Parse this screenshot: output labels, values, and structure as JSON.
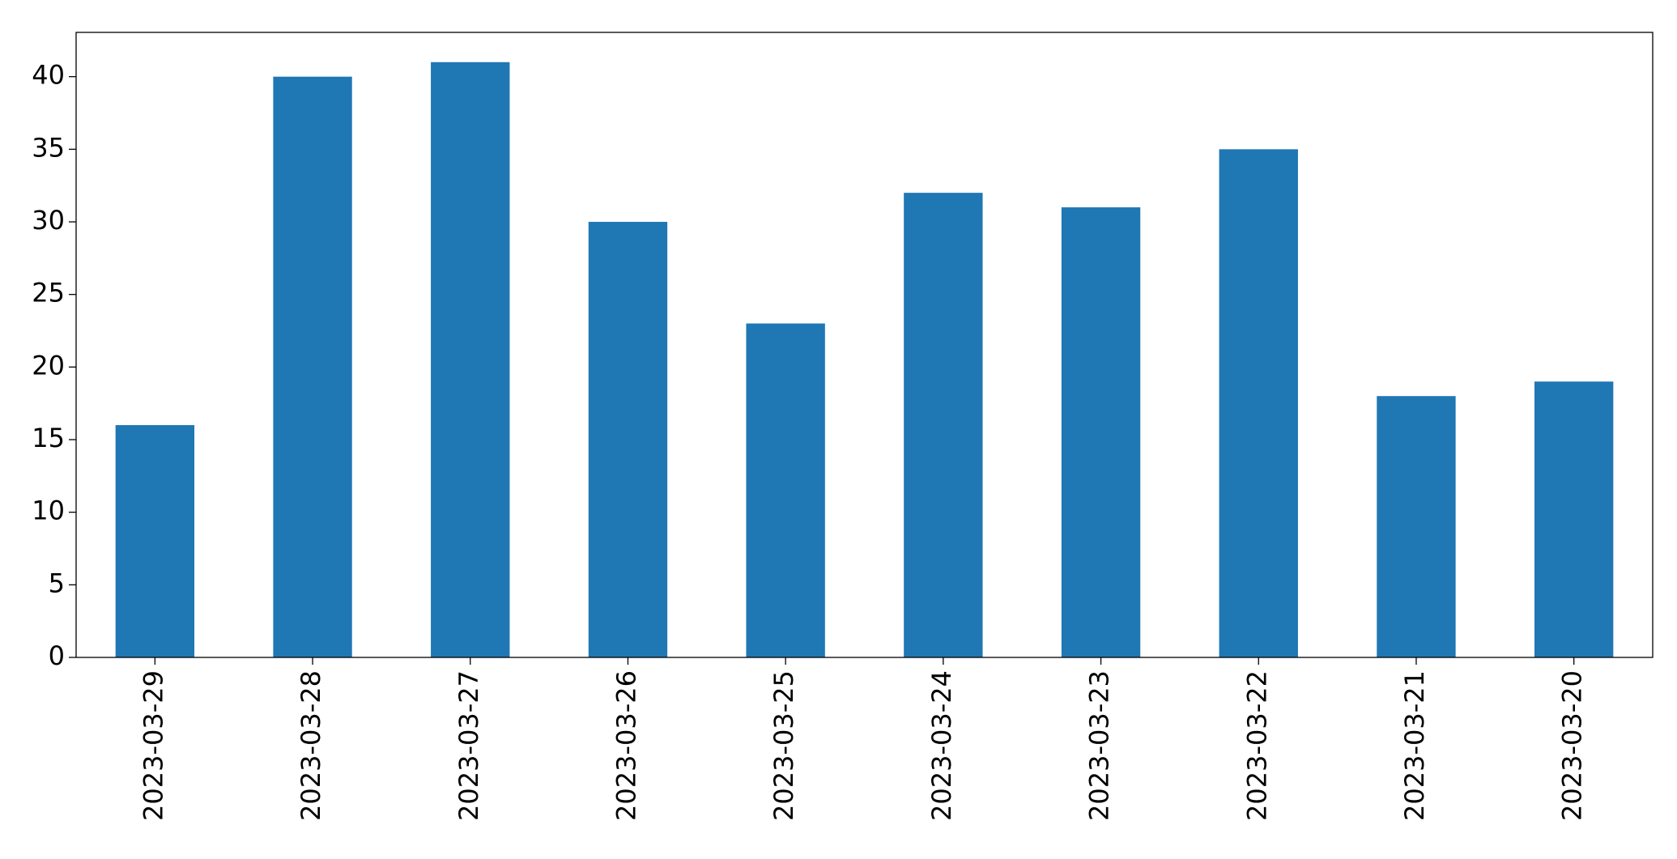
{
  "chart_data": {
    "type": "bar",
    "categories": [
      "2023-03-29",
      "2023-03-28",
      "2023-03-27",
      "2023-03-26",
      "2023-03-25",
      "2023-03-24",
      "2023-03-23",
      "2023-03-22",
      "2023-03-21",
      "2023-03-20"
    ],
    "values": [
      16,
      40,
      41,
      30,
      23,
      32,
      31,
      35,
      18,
      19
    ],
    "color": "#1f77b4",
    "ylim": [
      0,
      43.05
    ],
    "yticks": [
      0,
      5,
      10,
      15,
      20,
      25,
      30,
      35,
      40
    ],
    "grid": false
  }
}
